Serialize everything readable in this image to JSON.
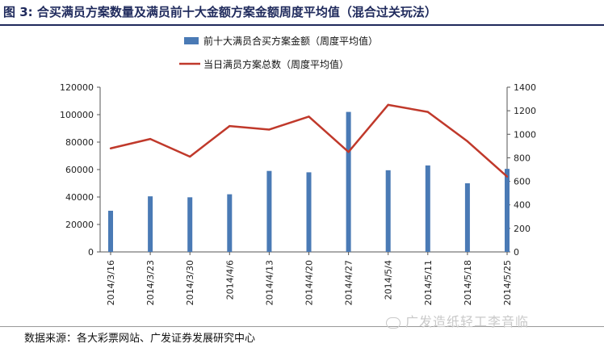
{
  "header": {
    "title": "图 3:  合买满员方案数量及满员前十大金额方案金额周度平均值（混合过关玩法）"
  },
  "footer": {
    "source": "数据来源：各大彩票网站、广发证券发展研究中心",
    "watermark": "广发造纸轻工李音临"
  },
  "chart_data": {
    "type": "bar",
    "categories": [
      "2014/3/16",
      "2014/3/23",
      "2014/3/30",
      "2014/4/6",
      "2014/4/13",
      "2014/4/20",
      "2014/4/27",
      "2014/5/4",
      "2014/5/11",
      "2014/5/18",
      "2014/5/25"
    ],
    "series": [
      {
        "name": "前十大满员合买方案金额（周度平均值）",
        "type": "bar",
        "axis": "left",
        "color": "#4a7ab5",
        "values": [
          30000,
          40500,
          39800,
          42000,
          59000,
          58000,
          102000,
          59500,
          63000,
          50000,
          60500
        ]
      },
      {
        "name": "当日满员方案总数（周度平均值）",
        "type": "line",
        "axis": "right",
        "color": "#c0392b",
        "values": [
          880,
          960,
          810,
          1070,
          1040,
          1150,
          850,
          1250,
          1190,
          940,
          640
        ]
      }
    ],
    "y_left": {
      "min": 0,
      "max": 120000,
      "ticks": [
        0,
        20000,
        40000,
        60000,
        80000,
        100000,
        120000
      ]
    },
    "y_right": {
      "min": 0,
      "max": 1400,
      "ticks": [
        0,
        200,
        400,
        600,
        800,
        1000,
        1200,
        1400
      ]
    },
    "legend_position": "top-center",
    "grid": false
  }
}
